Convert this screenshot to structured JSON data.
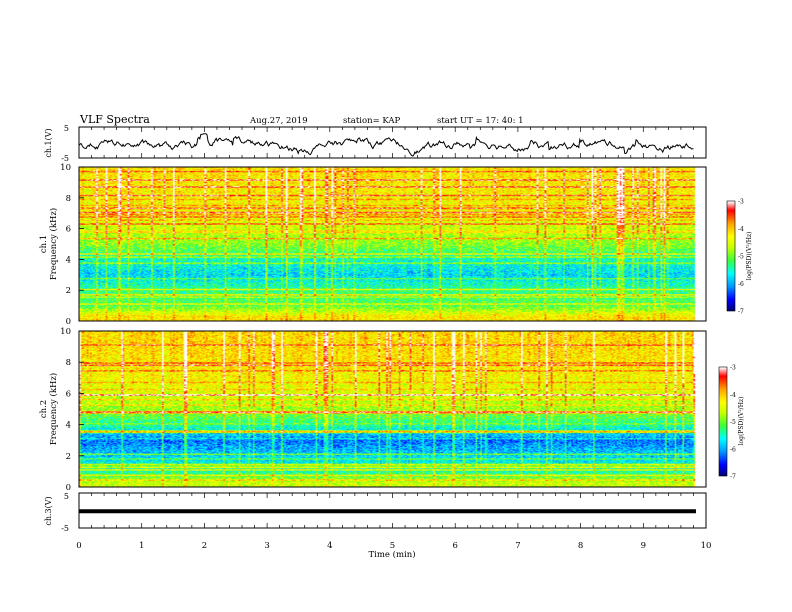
{
  "header": {
    "title": "VLF Spectra",
    "date": "Aug.27, 2019",
    "station": "station= KAP",
    "start": "start  UT  =   17: 40: 1"
  },
  "colorbar": {
    "label": "log(PSD)(V²/Hz)",
    "ticks": [
      "-3",
      "-4",
      "-5",
      "-6",
      "-7"
    ]
  },
  "colors": {
    "scale": [
      "#00007a",
      "#0000ff",
      "#0096ff",
      "#00ffff",
      "#3cff3c",
      "#c8ff00",
      "#ffff00",
      "#ffa000",
      "#ff0000",
      "#ffffff"
    ]
  },
  "chart_data": [
    {
      "type": "line",
      "panel": "ch1-waveform",
      "ylabel": "ch.1(V)",
      "ylim": [
        -5,
        5
      ],
      "yticks": [
        "5",
        "-5"
      ],
      "xlim": [
        0,
        10
      ],
      "description_range": "signal fluctuates roughly between -4 and +2 V"
    },
    {
      "type": "heatmap",
      "panel": "ch1-spectrogram",
      "ylabel_top": "ch.1",
      "ylabel": "Frequency (kHz)",
      "ylim": [
        0,
        10
      ],
      "yticks": [
        "0",
        "2",
        "4",
        "6",
        "8",
        "10"
      ],
      "xlim": [
        0,
        10
      ],
      "zlim": [
        -7,
        -3
      ],
      "band_profile": [
        {
          "f": 0.3,
          "log_psd": -4.2
        },
        {
          "f": 1.0,
          "log_psd": -5.1
        },
        {
          "f": 2.0,
          "log_psd": -5.3
        },
        {
          "f": 3.0,
          "log_psd": -5.8
        },
        {
          "f": 4.0,
          "log_psd": -5.5
        },
        {
          "f": 5.0,
          "log_psd": -4.9
        },
        {
          "f": 6.0,
          "log_psd": -4.6
        },
        {
          "f": 7.0,
          "log_psd": -4.4
        },
        {
          "f": 8.0,
          "log_psd": -4.3
        },
        {
          "f": 9.0,
          "log_psd": -4.2
        },
        {
          "f": 9.8,
          "log_psd": -4.2
        }
      ]
    },
    {
      "type": "heatmap",
      "panel": "ch2-spectrogram",
      "ylabel_top": "ch.2",
      "ylabel": "Frequency (kHz)",
      "ylim": [
        0,
        10
      ],
      "yticks": [
        "0",
        "2",
        "4",
        "6",
        "8",
        "10"
      ],
      "xlim": [
        0,
        10
      ],
      "zlim": [
        -7,
        -3
      ],
      "band_profile": [
        {
          "f": 0.3,
          "log_psd": -4.6
        },
        {
          "f": 1.0,
          "log_psd": -5.4
        },
        {
          "f": 2.0,
          "log_psd": -5.8
        },
        {
          "f": 3.0,
          "log_psd": -6.2
        },
        {
          "f": 4.0,
          "log_psd": -5.4
        },
        {
          "f": 5.0,
          "log_psd": -4.8
        },
        {
          "f": 6.0,
          "log_psd": -4.5
        },
        {
          "f": 7.0,
          "log_psd": -4.3
        },
        {
          "f": 8.0,
          "log_psd": -4.2
        },
        {
          "f": 9.0,
          "log_psd": -4.1
        },
        {
          "f": 9.8,
          "log_psd": -4.1
        }
      ]
    },
    {
      "type": "line",
      "panel": "ch3-waveform",
      "ylabel": "ch.3(V)",
      "ylim": [
        -5,
        5
      ],
      "yticks": [
        "5",
        "-5"
      ],
      "xlim": [
        0,
        10
      ],
      "xlabel": "Time (min)",
      "xticks": [
        "0",
        "1",
        "2",
        "3",
        "4",
        "5",
        "6",
        "7",
        "8",
        "9",
        "10"
      ],
      "constant_value": -0.2
    }
  ]
}
